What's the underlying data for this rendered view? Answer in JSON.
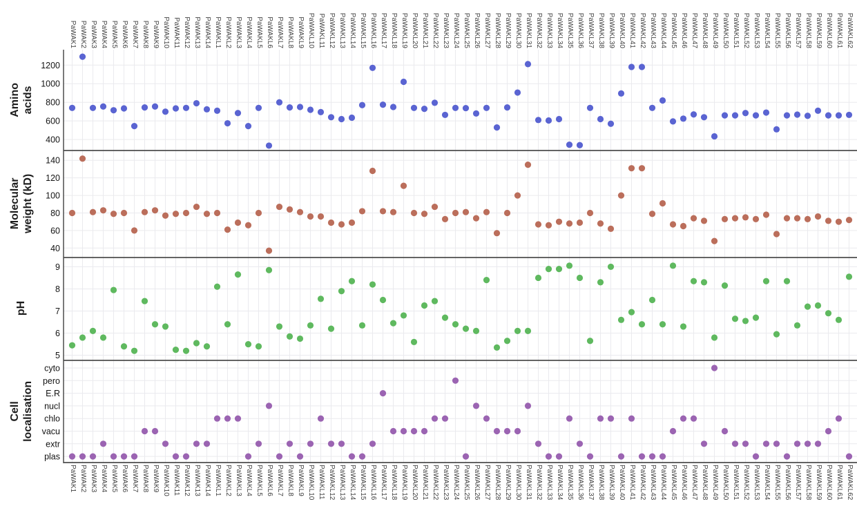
{
  "figure": {
    "description": "Four stacked scatter panels sharing one categorical x-axis of PaWAK / PaWAKL genes",
    "x_axis_label_position": "top and bottom, rotated 90 degrees"
  },
  "chart_data": {
    "type": "scatter",
    "grid": true,
    "legend": "none",
    "categories": [
      "PaWAK1",
      "PaWAK2",
      "PaWAK3",
      "PaWAK4",
      "PaWAK5",
      "PaWAK6",
      "PaWAK7",
      "PaWAK8",
      "PaWAK9",
      "PaWAK10",
      "PaWAK11",
      "PaWAK12",
      "PaWAK13",
      "PaWAK14",
      "PaWAKL1",
      "PaWAKL2",
      "PaWAKL3",
      "PaWAKL4",
      "PaWAKL5",
      "PaWAKL6",
      "PaWAKL7",
      "PaWAKL8",
      "PaWAKL9",
      "PaWAKL10",
      "PaWAKL11",
      "PaWAKL12",
      "PaWAKL13",
      "PaWAKL14",
      "PaWAKL15",
      "PaWAKL16",
      "PaWAKL17",
      "PaWAKL18",
      "PaWAKL19",
      "PaWAKL20",
      "PaWAKL21",
      "PaWAKL22",
      "PaWAKL23",
      "PaWAKL24",
      "PaWAKL25",
      "PaWAKL26",
      "PaWAKL27",
      "PaWAKL28",
      "PaWAKL29",
      "PaWAKL30",
      "PaWAKL31",
      "PaWAKL32",
      "PaWAKL33",
      "PaWAKL34",
      "PaWAKL35",
      "PaWAKL36",
      "PaWAKL37",
      "PaWAKL38",
      "PaWAKL39",
      "PaWAKL40",
      "PaWAKL41",
      "PaWAKL42",
      "PaWAKL43",
      "PaWAKL44",
      "PaWAKL45",
      "PaWAKL46",
      "PaWAKL47",
      "PaWAKL48",
      "PaWAKL49",
      "PaWAKL50",
      "PaWAKL51",
      "PaWAKL52",
      "PaWAKL53",
      "PaWAKL54",
      "PaWAKL55",
      "PaWAKL56",
      "PaWAKL57",
      "PaWAKL58",
      "PaWAKL59",
      "PaWAKL60",
      "PaWAKL61",
      "PaWAKL62"
    ],
    "panels": [
      {
        "name": "amino-acids",
        "ylabel": "Amino acids",
        "ylabel_lines": [
          "Amino",
          "acids"
        ],
        "yticks": [
          400,
          600,
          800,
          1000,
          1200
        ],
        "ylim": [
          290,
          1365
        ],
        "color": "#5a64d2",
        "values": [
          740,
          1290,
          740,
          755,
          715,
          735,
          545,
          745,
          755,
          700,
          735,
          740,
          790,
          725,
          710,
          575,
          685,
          545,
          740,
          335,
          800,
          745,
          750,
          720,
          695,
          640,
          620,
          635,
          770,
          1170,
          775,
          750,
          1020,
          740,
          730,
          795,
          665,
          740,
          738,
          680,
          740,
          530,
          745,
          905,
          1210,
          610,
          605,
          620,
          345,
          340,
          740,
          620,
          570,
          895,
          1180,
          1180,
          740,
          820,
          595,
          625,
          670,
          640,
          435,
          660,
          660,
          685,
          660,
          690,
          510,
          660,
          668,
          655,
          710,
          660,
          660,
          665
        ]
      },
      {
        "name": "molecular-weight",
        "ylabel": "Molecular weight (kD)",
        "ylabel_lines": [
          "Molecular",
          "weight (kD)"
        ],
        "yticks": [
          40,
          60,
          80,
          100,
          120,
          140
        ],
        "ylim": [
          30,
          152
        ],
        "color": "#bb6e5b",
        "values": [
          80,
          142,
          81,
          83,
          79,
          80,
          60,
          81,
          83,
          77,
          79,
          80,
          87,
          79,
          80,
          61,
          69,
          66,
          80,
          37,
          87,
          84,
          81,
          76,
          76,
          69,
          67,
          69,
          82,
          128,
          82,
          81,
          111,
          80,
          79,
          87,
          73,
          80,
          81,
          74,
          81,
          57,
          80,
          100,
          135,
          67,
          66,
          70,
          68,
          69,
          80,
          68,
          62,
          100,
          131,
          131,
          79,
          91,
          67,
          65,
          74,
          71,
          48,
          73,
          74,
          75,
          73,
          78,
          56,
          74,
          74,
          73,
          76,
          71,
          70,
          72
        ]
      },
      {
        "name": "ph",
        "ylabel": "pH",
        "ylabel_lines": [
          "pH"
        ],
        "yticks": [
          5,
          6,
          7,
          8,
          9
        ],
        "ylim": [
          4.8,
          9.45
        ],
        "color": "#5fb95f",
        "values": [
          5.45,
          5.8,
          6.1,
          5.8,
          7.95,
          5.4,
          5.2,
          7.45,
          6.4,
          6.3,
          5.25,
          5.2,
          5.55,
          5.4,
          8.1,
          6.4,
          8.65,
          5.5,
          5.4,
          8.85,
          6.3,
          5.85,
          5.75,
          6.35,
          7.55,
          6.2,
          7.9,
          8.35,
          6.35,
          8.2,
          7.5,
          6.45,
          6.8,
          5.6,
          7.25,
          7.45,
          6.7,
          6.4,
          6.2,
          6.1,
          8.4,
          5.35,
          5.65,
          6.1,
          6.1,
          8.5,
          8.9,
          8.9,
          9.05,
          8.5,
          5.65,
          8.3,
          9.0,
          6.6,
          6.95,
          6.4,
          7.5,
          6.4,
          9.05,
          6.3,
          8.35,
          8.3,
          5.8,
          8.15,
          6.65,
          6.55,
          6.7,
          8.35,
          5.95,
          8.35,
          6.35,
          7.2,
          7.25,
          6.9,
          6.6,
          8.55
        ]
      },
      {
        "name": "cell-localisation",
        "ylabel": "Cell localisation",
        "ylabel_lines": [
          "Cell",
          "localisation"
        ],
        "ycategories": [
          "cyto",
          "pero",
          "E.R",
          "nucl",
          "chlo",
          "vacu",
          "extr",
          "plas"
        ],
        "color": "#9b64b2",
        "values": [
          "plas",
          "plas",
          "plas",
          "extr",
          "plas",
          "plas",
          "plas",
          "vacu",
          "vacu",
          "extr",
          "plas",
          "plas",
          "extr",
          "extr",
          "chlo",
          "chlo",
          "chlo",
          "plas",
          "extr",
          "nucl",
          "plas",
          "extr",
          "plas",
          "extr",
          "chlo",
          "extr",
          "extr",
          "plas",
          "plas",
          "extr",
          "E.R",
          "vacu",
          "vacu",
          "vacu",
          "vacu",
          "chlo",
          "chlo",
          "pero",
          "plas",
          "nucl",
          "chlo",
          "vacu",
          "vacu",
          "vacu",
          "nucl",
          "extr",
          "plas",
          "plas",
          "chlo",
          "extr",
          "plas",
          "chlo",
          "chlo",
          "plas",
          "chlo",
          "plas",
          "plas",
          "plas",
          "vacu",
          "chlo",
          "chlo",
          "extr",
          "cyto",
          "vacu",
          "extr",
          "extr",
          "plas",
          "extr",
          "extr",
          "plas",
          "extr",
          "extr",
          "extr",
          "vacu",
          "chlo",
          "plas"
        ]
      }
    ],
    "style": {
      "grid_color": "#eaeaee",
      "spine_color": "#4d4d4d",
      "background": "#ffffff",
      "dot_radius": 4.6
    }
  }
}
